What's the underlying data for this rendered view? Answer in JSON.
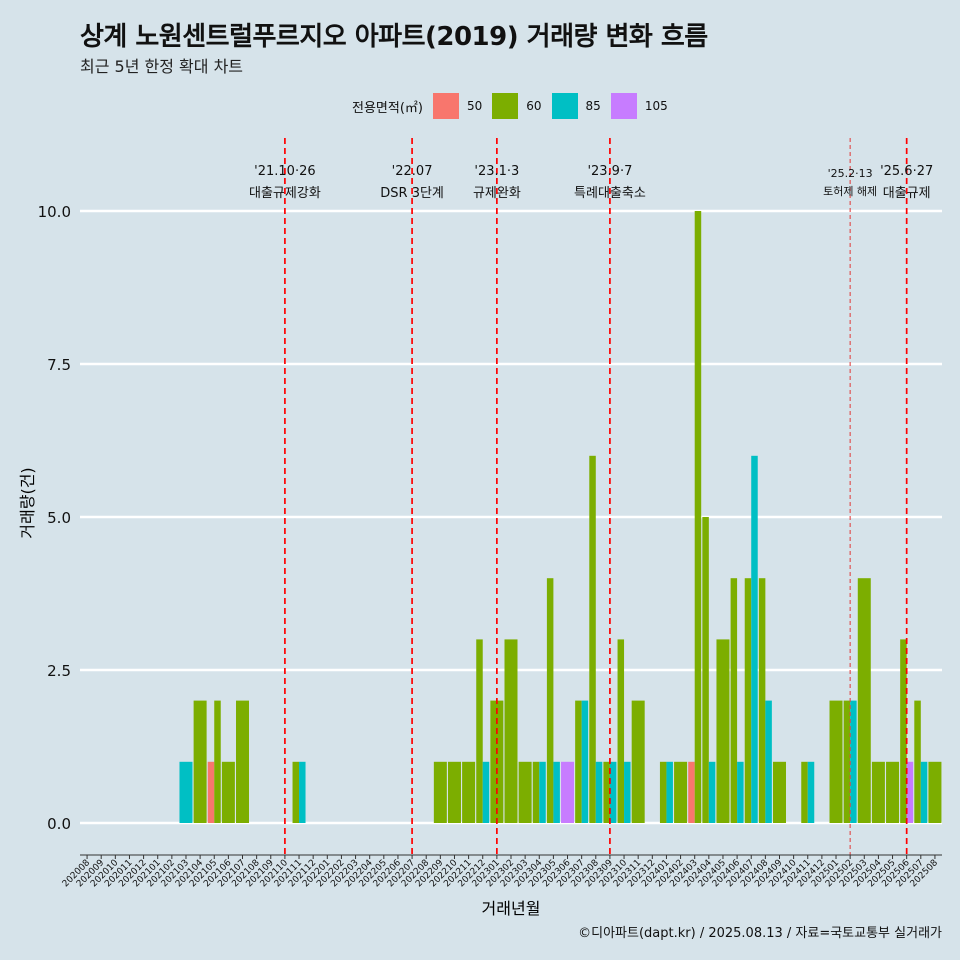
{
  "title": "상계 노원센트럴푸르지오 아파트(2019) 거래량 변화 흐름",
  "subtitle": "최근 5년 한정 확대 차트",
  "caption": "©디아파트(dapt.kr) / 2025.08.13 / 자료=국토교통부 실거래가",
  "legend": {
    "title": "전용면적(㎡)",
    "items": [
      {
        "label": "50",
        "color": "#f8766d"
      },
      {
        "label": "60",
        "color": "#7cae00"
      },
      {
        "label": "85",
        "color": "#00bfc4"
      },
      {
        "label": "105",
        "color": "#c77cff"
      }
    ]
  },
  "chart_data": {
    "type": "bar",
    "xlabel": "거래년월",
    "ylabel": "거래량(건)",
    "ylim": [
      0,
      10.5
    ],
    "yticks": [
      "0.0",
      "2.5",
      "5.0",
      "7.5",
      "10.0"
    ],
    "ytick_values": [
      0,
      2.5,
      5,
      7.5,
      10
    ],
    "grid": true,
    "categories": [
      "202008",
      "202009",
      "202010",
      "202011",
      "202012",
      "202101",
      "202102",
      "202103",
      "202104",
      "202105",
      "202106",
      "202107",
      "202108",
      "202109",
      "202110",
      "202111",
      "202112",
      "202201",
      "202202",
      "202203",
      "202204",
      "202205",
      "202206",
      "202207",
      "202208",
      "202209",
      "202210",
      "202211",
      "202212",
      "202301",
      "202302",
      "202303",
      "202304",
      "202305",
      "202306",
      "202307",
      "202308",
      "202309",
      "202310",
      "202311",
      "202312",
      "202401",
      "202402",
      "202403",
      "202404",
      "202405",
      "202406",
      "202407",
      "202408",
      "202409",
      "202410",
      "202411",
      "202412",
      "202501",
      "202502",
      "202503",
      "202504",
      "202505",
      "202506",
      "202507",
      "202508"
    ],
    "series": [
      {
        "name": "50",
        "color": "#f8766d",
        "values": [
          0,
          0,
          0,
          0,
          0,
          0,
          0,
          0,
          0,
          1,
          0,
          0,
          0,
          0,
          0,
          0,
          0,
          0,
          0,
          0,
          0,
          0,
          0,
          0,
          0,
          0,
          0,
          0,
          0,
          0,
          0,
          0,
          0,
          0,
          0,
          0,
          0,
          0,
          0,
          0,
          0,
          0,
          0,
          1,
          0,
          0,
          0,
          0,
          0,
          0,
          0,
          0,
          0,
          0,
          0,
          0,
          0,
          0,
          0,
          0,
          0
        ]
      },
      {
        "name": "60",
        "color": "#7cae00",
        "values": [
          0,
          0,
          0,
          0,
          0,
          0,
          0,
          0,
          2,
          2,
          1,
          2,
          0,
          0,
          0,
          1,
          0,
          0,
          0,
          0,
          0,
          0,
          0,
          0,
          0,
          1,
          1,
          1,
          3,
          2,
          3,
          1,
          1,
          4,
          0,
          2,
          6,
          1,
          3,
          2,
          0,
          1,
          1,
          10,
          5,
          3,
          4,
          4,
          4,
          1,
          0,
          1,
          0,
          2,
          2,
          4,
          1,
          1,
          3,
          2,
          1
        ]
      },
      {
        "name": "85",
        "color": "#00bfc4",
        "values": [
          0,
          0,
          0,
          0,
          0,
          0,
          0,
          1,
          0,
          0,
          0,
          0,
          0,
          0,
          0,
          1,
          0,
          0,
          0,
          0,
          0,
          0,
          0,
          0,
          0,
          0,
          0,
          0,
          1,
          0,
          0,
          0,
          1,
          1,
          0,
          2,
          1,
          1,
          1,
          0,
          0,
          1,
          0,
          0,
          1,
          0,
          1,
          6,
          2,
          0,
          0,
          1,
          0,
          0,
          2,
          0,
          0,
          0,
          0,
          1,
          0
        ]
      },
      {
        "name": "105",
        "color": "#c77cff",
        "values": [
          0,
          0,
          0,
          0,
          0,
          0,
          0,
          0,
          0,
          0,
          0,
          0,
          0,
          0,
          0,
          0,
          0,
          0,
          0,
          0,
          0,
          0,
          0,
          0,
          0,
          0,
          0,
          0,
          0,
          0,
          0,
          0,
          0,
          0,
          1,
          0,
          0,
          0,
          0,
          0,
          0,
          0,
          0,
          0,
          0,
          0,
          0,
          0,
          0,
          0,
          0,
          0,
          0,
          0,
          0,
          0,
          0,
          0,
          1,
          0,
          0
        ]
      }
    ],
    "annotations": [
      {
        "date": "'21.10·26",
        "label": "대출규제강화",
        "month": "202110",
        "style": "dashed-heavy"
      },
      {
        "date": "'22.07",
        "label": "DSR 3단계",
        "month": "202207",
        "style": "dashed-heavy"
      },
      {
        "date": "'23.1·3",
        "label": "규제완화",
        "month": "202301",
        "style": "dashed-heavy"
      },
      {
        "date": "'23.9·7",
        "label": "특례대출축소",
        "month": "202309",
        "style": "dashed-heavy"
      },
      {
        "date": "'25.2·13",
        "label": "토허제 해제",
        "month": "202502",
        "style": "dashed-light"
      },
      {
        "date": "'25.6·27",
        "label": "대출규제",
        "month": "202506",
        "style": "dashed-heavy"
      }
    ]
  }
}
